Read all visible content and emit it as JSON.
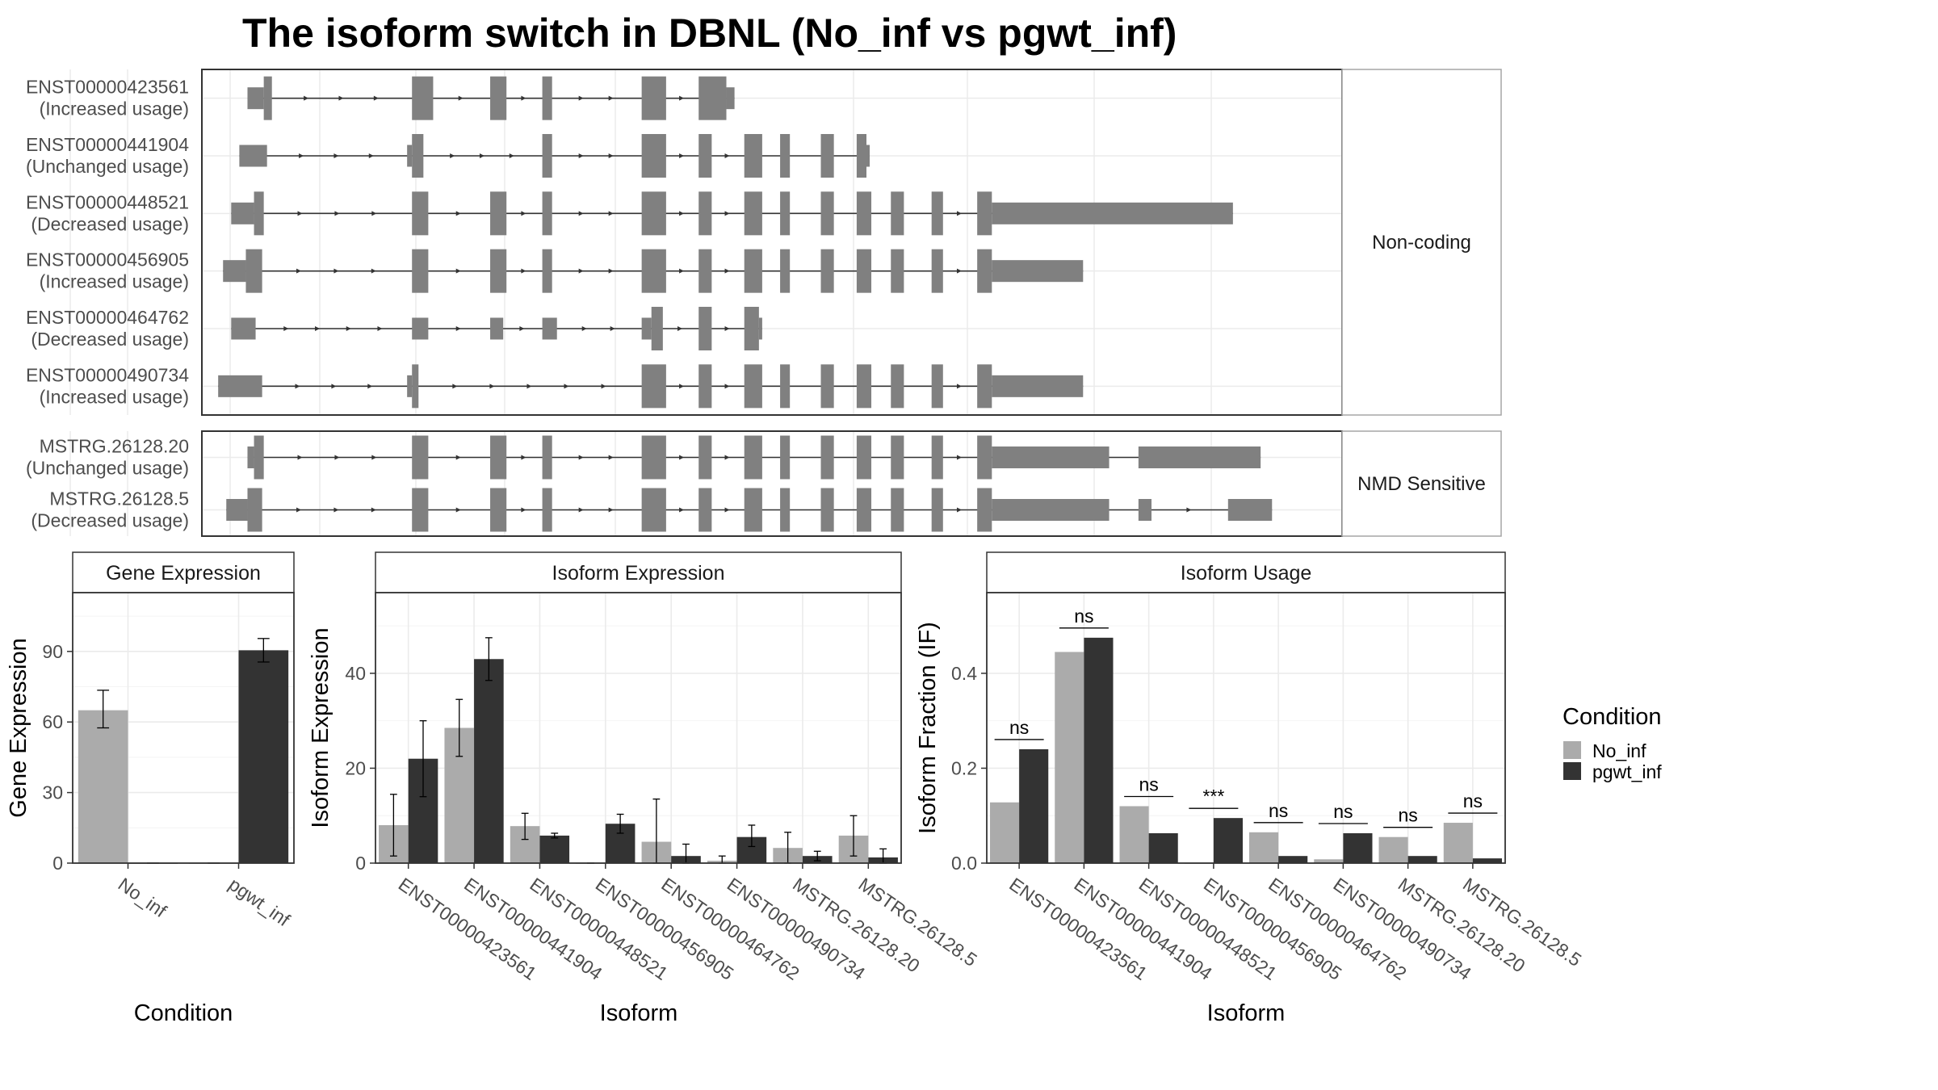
{
  "title": "The isoform switch in DBNL (No_inf vs pgwt_inf)",
  "colors": {
    "no_inf": "#ababab",
    "pgwt_inf": "#333333",
    "feature": "#808080",
    "panel_border": "#333333",
    "strip_border": "#a6a6a6",
    "grid": "#ebebeb"
  },
  "structure": {
    "non_coding_label": "Non-coding",
    "nmd_label": "NMD Sensitive",
    "tracks": [
      {
        "id": "ENST00000423561",
        "usage": "(Increased usage)",
        "group": "Non-coding",
        "exons": [
          [
            28,
            38,
            0.5
          ],
          [
            38,
            43,
            1
          ],
          [
            129,
            142,
            1
          ],
          [
            177,
            187,
            1
          ],
          [
            209,
            215,
            1
          ],
          [
            270,
            285,
            1
          ],
          [
            305,
            322,
            1
          ],
          [
            322,
            327,
            0.5
          ]
        ]
      },
      {
        "id": "ENST00000441904",
        "usage": "(Unchanged usage)",
        "group": "Non-coding",
        "exons": [
          [
            23,
            40,
            0.5
          ],
          [
            126,
            129,
            0.5
          ],
          [
            129,
            136,
            1
          ],
          [
            209,
            215,
            1
          ],
          [
            270,
            285,
            1
          ],
          [
            305,
            313,
            1
          ],
          [
            333,
            344,
            1
          ],
          [
            355,
            361,
            1
          ],
          [
            380,
            388,
            1
          ],
          [
            402,
            408,
            1
          ],
          [
            408,
            410,
            0.5
          ]
        ]
      },
      {
        "id": "ENST00000448521",
        "usage": "(Decreased usage)",
        "group": "Non-coding",
        "exons": [
          [
            18,
            32,
            0.5
          ],
          [
            32,
            38,
            1
          ],
          [
            129,
            139,
            1
          ],
          [
            177,
            187,
            1
          ],
          [
            209,
            215,
            1
          ],
          [
            270,
            285,
            1
          ],
          [
            305,
            313,
            1
          ],
          [
            333,
            344,
            1
          ],
          [
            355,
            361,
            1
          ],
          [
            380,
            388,
            1
          ],
          [
            402,
            411,
            1
          ],
          [
            423,
            431,
            1
          ],
          [
            448,
            455,
            1
          ],
          [
            476,
            485,
            1
          ],
          [
            485,
            633,
            0.5
          ]
        ]
      },
      {
        "id": "ENST00000456905",
        "usage": "(Increased usage)",
        "group": "Non-coding",
        "exons": [
          [
            13,
            27,
            0.5
          ],
          [
            27,
            37,
            1
          ],
          [
            129,
            139,
            1
          ],
          [
            177,
            187,
            1
          ],
          [
            209,
            215,
            1
          ],
          [
            270,
            285,
            1
          ],
          [
            305,
            313,
            1
          ],
          [
            333,
            344,
            1
          ],
          [
            355,
            361,
            1
          ],
          [
            380,
            388,
            1
          ],
          [
            402,
            411,
            1
          ],
          [
            423,
            431,
            1
          ],
          [
            448,
            455,
            1
          ],
          [
            476,
            485,
            1
          ],
          [
            485,
            541,
            0.5
          ]
        ]
      },
      {
        "id": "ENST00000464762",
        "usage": "(Decreased usage)",
        "group": "Non-coding",
        "exons": [
          [
            18,
            33,
            0.5
          ],
          [
            129,
            139,
            0.5
          ],
          [
            177,
            185,
            0.5
          ],
          [
            209,
            218,
            0.5
          ],
          [
            270,
            276,
            0.5
          ],
          [
            276,
            283,
            1
          ],
          [
            305,
            313,
            1
          ],
          [
            333,
            342,
            1
          ],
          [
            342,
            344,
            0.5
          ]
        ]
      },
      {
        "id": "ENST00000490734",
        "usage": "(Increased usage)",
        "group": "Non-coding",
        "exons": [
          [
            10,
            37,
            0.5
          ],
          [
            126,
            129,
            0.5
          ],
          [
            129,
            133,
            1
          ],
          [
            270,
            285,
            1
          ],
          [
            305,
            313,
            1
          ],
          [
            333,
            344,
            1
          ],
          [
            355,
            361,
            1
          ],
          [
            380,
            388,
            1
          ],
          [
            402,
            411,
            1
          ],
          [
            423,
            431,
            1
          ],
          [
            448,
            455,
            1
          ],
          [
            476,
            485,
            1
          ],
          [
            485,
            541,
            0.5
          ]
        ]
      },
      {
        "id": "MSTRG.26128.20",
        "usage": "(Unchanged usage)",
        "group": "NMD Sensitive",
        "exons": [
          [
            28,
            32,
            0.5
          ],
          [
            32,
            38,
            1
          ],
          [
            129,
            139,
            1
          ],
          [
            177,
            187,
            1
          ],
          [
            209,
            215,
            1
          ],
          [
            270,
            285,
            1
          ],
          [
            305,
            313,
            1
          ],
          [
            333,
            344,
            1
          ],
          [
            355,
            361,
            1
          ],
          [
            380,
            388,
            1
          ],
          [
            402,
            411,
            1
          ],
          [
            423,
            431,
            1
          ],
          [
            448,
            455,
            1
          ],
          [
            476,
            485,
            1
          ],
          [
            485,
            557,
            0.5
          ],
          [
            575,
            650,
            0.5
          ]
        ]
      },
      {
        "id": "MSTRG.26128.5",
        "usage": "(Decreased usage)",
        "group": "NMD Sensitive",
        "exons": [
          [
            15,
            28,
            0.5
          ],
          [
            28,
            37,
            1
          ],
          [
            129,
            139,
            1
          ],
          [
            177,
            187,
            1
          ],
          [
            209,
            215,
            1
          ],
          [
            270,
            285,
            1
          ],
          [
            305,
            313,
            1
          ],
          [
            333,
            344,
            1
          ],
          [
            355,
            361,
            1
          ],
          [
            380,
            388,
            1
          ],
          [
            402,
            411,
            1
          ],
          [
            423,
            431,
            1
          ],
          [
            448,
            455,
            1
          ],
          [
            476,
            485,
            1
          ],
          [
            485,
            557,
            0.5
          ],
          [
            575,
            583,
            0.5
          ],
          [
            630,
            657,
            0.5
          ]
        ]
      }
    ]
  },
  "gene_expression": {
    "strip_title": "Gene Expression",
    "ylabel": "Gene Expression",
    "xlabel": "Condition",
    "ylim": [
      0,
      115
    ],
    "yticks": [
      0,
      30,
      60,
      90
    ],
    "categories": [
      "No_inf",
      "pgwt_inf"
    ],
    "values": [
      65,
      90.5
    ],
    "errors": [
      [
        57.5,
        73.5
      ],
      [
        85.5,
        95.5
      ]
    ]
  },
  "isoform_expression": {
    "strip_title": "Isoform Expression",
    "ylabel": "Isoform Expression",
    "xlabel": "Isoform",
    "ylim": [
      0,
      57
    ],
    "yticks": [
      0,
      20,
      40
    ],
    "categories": [
      "ENST00000423561",
      "ENST00000441904",
      "ENST00000448521",
      "ENST00000456905",
      "ENST00000464762",
      "ENST00000490734",
      "MSTRG.26128.20",
      "MSTRG.26128.5"
    ],
    "series": [
      {
        "name": "No_inf",
        "values": [
          8,
          28.5,
          7.8,
          0,
          4.5,
          0.5,
          3.2,
          5.8
        ],
        "errors": [
          [
            1.5,
            14.5
          ],
          [
            22.5,
            34.5
          ],
          [
            5,
            10.5
          ],
          [
            0,
            0
          ],
          [
            0,
            13.5
          ],
          [
            0,
            1.5
          ],
          [
            0,
            6.5
          ],
          [
            1.5,
            10
          ]
        ]
      },
      {
        "name": "pgwt_inf",
        "values": [
          22,
          43,
          5.8,
          8.3,
          1.5,
          5.5,
          1.5,
          1.2
        ],
        "errors": [
          [
            14,
            30
          ],
          [
            38.5,
            47.5
          ],
          [
            5.3,
            6.3
          ],
          [
            6.3,
            10.3
          ],
          [
            0,
            4
          ],
          [
            3.5,
            8
          ],
          [
            0.5,
            2.5
          ],
          [
            0,
            3
          ]
        ]
      }
    ]
  },
  "isoform_usage": {
    "strip_title": "Isoform Usage",
    "ylabel": "Isoform Fraction (IF)",
    "xlabel": "Isoform",
    "ylim": [
      0,
      0.57
    ],
    "yticks": [
      0.0,
      0.2,
      0.4
    ],
    "ytick_labels": [
      "0.0",
      "0.2",
      "0.4"
    ],
    "categories": [
      "ENST00000423561",
      "ENST00000441904",
      "ENST00000448521",
      "ENST00000456905",
      "ENST00000464762",
      "ENST00000490734",
      "MSTRG.26128.20",
      "MSTRG.26128.5"
    ],
    "series": [
      {
        "name": "No_inf",
        "values": [
          0.128,
          0.445,
          0.12,
          0,
          0.065,
          0.008,
          0.055,
          0.085
        ]
      },
      {
        "name": "pgwt_inf",
        "values": [
          0.24,
          0.475,
          0.063,
          0.095,
          0.015,
          0.063,
          0.015,
          0.01
        ]
      }
    ],
    "significance": [
      "ns",
      "ns",
      "ns",
      "***",
      "ns",
      "ns",
      "ns",
      "ns"
    ]
  },
  "legend": {
    "title": "Condition",
    "entries": [
      "No_inf",
      "pgwt_inf"
    ],
    "position": "right"
  }
}
